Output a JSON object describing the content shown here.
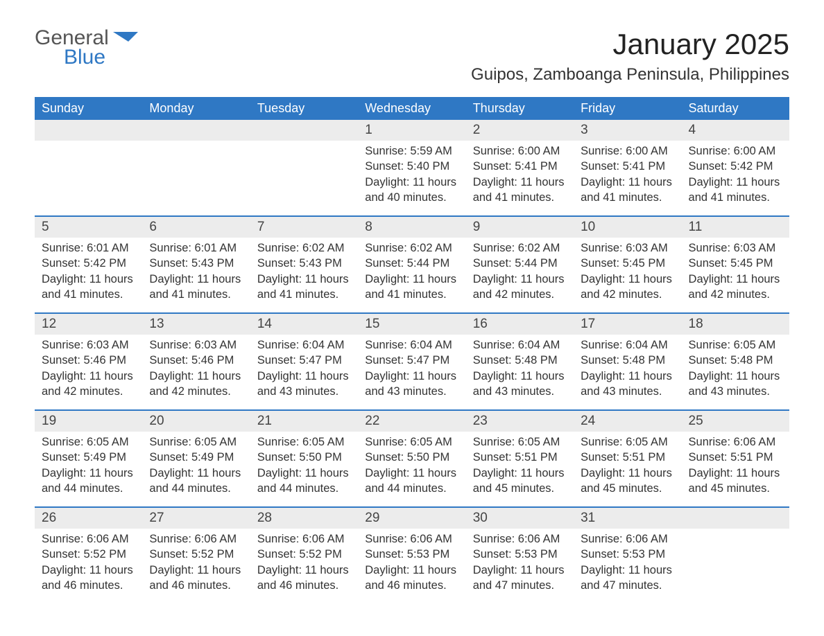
{
  "logo": {
    "general": "General",
    "blue": "Blue"
  },
  "title": "January 2025",
  "location": "Guipos, Zamboanga Peninsula, Philippines",
  "colors": {
    "header_bg": "#2f78c4",
    "header_text": "#ffffff",
    "daynum_bg": "#ececec",
    "body_text": "#333333",
    "page_bg": "#ffffff",
    "week_border": "#2f78c4"
  },
  "typography": {
    "title_fontsize": 42,
    "location_fontsize": 24,
    "header_fontsize": 18,
    "daynum_fontsize": 19,
    "detail_fontsize": 16.5,
    "font_family": "Arial"
  },
  "calendar": {
    "columns": [
      "Sunday",
      "Monday",
      "Tuesday",
      "Wednesday",
      "Thursday",
      "Friday",
      "Saturday"
    ],
    "weeks": [
      [
        null,
        null,
        null,
        {
          "n": "1",
          "sr": "5:59 AM",
          "ss": "5:40 PM",
          "dl": "11 hours and 40 minutes."
        },
        {
          "n": "2",
          "sr": "6:00 AM",
          "ss": "5:41 PM",
          "dl": "11 hours and 41 minutes."
        },
        {
          "n": "3",
          "sr": "6:00 AM",
          "ss": "5:41 PM",
          "dl": "11 hours and 41 minutes."
        },
        {
          "n": "4",
          "sr": "6:00 AM",
          "ss": "5:42 PM",
          "dl": "11 hours and 41 minutes."
        }
      ],
      [
        {
          "n": "5",
          "sr": "6:01 AM",
          "ss": "5:42 PM",
          "dl": "11 hours and 41 minutes."
        },
        {
          "n": "6",
          "sr": "6:01 AM",
          "ss": "5:43 PM",
          "dl": "11 hours and 41 minutes."
        },
        {
          "n": "7",
          "sr": "6:02 AM",
          "ss": "5:43 PM",
          "dl": "11 hours and 41 minutes."
        },
        {
          "n": "8",
          "sr": "6:02 AM",
          "ss": "5:44 PM",
          "dl": "11 hours and 41 minutes."
        },
        {
          "n": "9",
          "sr": "6:02 AM",
          "ss": "5:44 PM",
          "dl": "11 hours and 42 minutes."
        },
        {
          "n": "10",
          "sr": "6:03 AM",
          "ss": "5:45 PM",
          "dl": "11 hours and 42 minutes."
        },
        {
          "n": "11",
          "sr": "6:03 AM",
          "ss": "5:45 PM",
          "dl": "11 hours and 42 minutes."
        }
      ],
      [
        {
          "n": "12",
          "sr": "6:03 AM",
          "ss": "5:46 PM",
          "dl": "11 hours and 42 minutes."
        },
        {
          "n": "13",
          "sr": "6:03 AM",
          "ss": "5:46 PM",
          "dl": "11 hours and 42 minutes."
        },
        {
          "n": "14",
          "sr": "6:04 AM",
          "ss": "5:47 PM",
          "dl": "11 hours and 43 minutes."
        },
        {
          "n": "15",
          "sr": "6:04 AM",
          "ss": "5:47 PM",
          "dl": "11 hours and 43 minutes."
        },
        {
          "n": "16",
          "sr": "6:04 AM",
          "ss": "5:48 PM",
          "dl": "11 hours and 43 minutes."
        },
        {
          "n": "17",
          "sr": "6:04 AM",
          "ss": "5:48 PM",
          "dl": "11 hours and 43 minutes."
        },
        {
          "n": "18",
          "sr": "6:05 AM",
          "ss": "5:48 PM",
          "dl": "11 hours and 43 minutes."
        }
      ],
      [
        {
          "n": "19",
          "sr": "6:05 AM",
          "ss": "5:49 PM",
          "dl": "11 hours and 44 minutes."
        },
        {
          "n": "20",
          "sr": "6:05 AM",
          "ss": "5:49 PM",
          "dl": "11 hours and 44 minutes."
        },
        {
          "n": "21",
          "sr": "6:05 AM",
          "ss": "5:50 PM",
          "dl": "11 hours and 44 minutes."
        },
        {
          "n": "22",
          "sr": "6:05 AM",
          "ss": "5:50 PM",
          "dl": "11 hours and 44 minutes."
        },
        {
          "n": "23",
          "sr": "6:05 AM",
          "ss": "5:51 PM",
          "dl": "11 hours and 45 minutes."
        },
        {
          "n": "24",
          "sr": "6:05 AM",
          "ss": "5:51 PM",
          "dl": "11 hours and 45 minutes."
        },
        {
          "n": "25",
          "sr": "6:06 AM",
          "ss": "5:51 PM",
          "dl": "11 hours and 45 minutes."
        }
      ],
      [
        {
          "n": "26",
          "sr": "6:06 AM",
          "ss": "5:52 PM",
          "dl": "11 hours and 46 minutes."
        },
        {
          "n": "27",
          "sr": "6:06 AM",
          "ss": "5:52 PM",
          "dl": "11 hours and 46 minutes."
        },
        {
          "n": "28",
          "sr": "6:06 AM",
          "ss": "5:52 PM",
          "dl": "11 hours and 46 minutes."
        },
        {
          "n": "29",
          "sr": "6:06 AM",
          "ss": "5:53 PM",
          "dl": "11 hours and 46 minutes."
        },
        {
          "n": "30",
          "sr": "6:06 AM",
          "ss": "5:53 PM",
          "dl": "11 hours and 47 minutes."
        },
        {
          "n": "31",
          "sr": "6:06 AM",
          "ss": "5:53 PM",
          "dl": "11 hours and 47 minutes."
        },
        null
      ]
    ],
    "labels": {
      "sunrise": "Sunrise:",
      "sunset": "Sunset:",
      "daylight": "Daylight:"
    }
  }
}
